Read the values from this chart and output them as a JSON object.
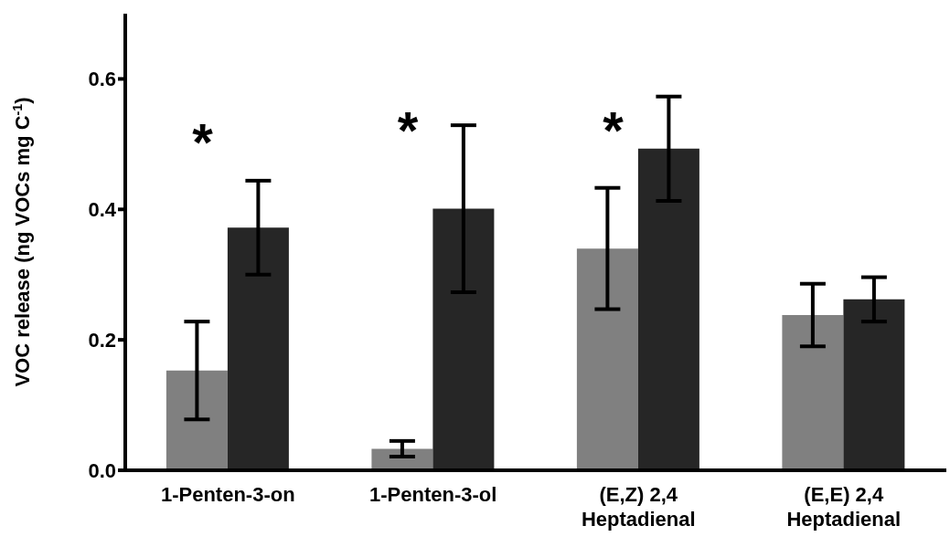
{
  "chart_data": {
    "type": "bar",
    "ylabel": "VOC release (ng VOCs mg C$^{-1}$)",
    "categories": [
      "1-Penten-3-on",
      "1-Penten-3-ol",
      "(E,Z) 2,4 Heptadienal",
      "(E,E) 2,4 Heptadienal"
    ],
    "series": [
      {
        "color": "#808080",
        "values": [
          0.153,
          0.033,
          0.34,
          0.238
        ],
        "errors": [
          0.075,
          0.012,
          0.093,
          0.048
        ]
      },
      {
        "color": "#262626",
        "values": [
          0.372,
          0.401,
          0.493,
          0.262
        ],
        "errors": [
          0.072,
          0.128,
          0.08,
          0.034
        ]
      }
    ],
    "ylim": [
      0,
      0.7
    ],
    "yticks": [
      {
        "value": 0,
        "label": "0.0"
      },
      {
        "value": 0.2,
        "label": "0.2"
      },
      {
        "value": 0.4,
        "label": "0.4"
      },
      {
        "value": 0.6,
        "label": "0.6"
      }
    ],
    "grid": false,
    "legend": false,
    "annotations": [
      "*",
      "*",
      "*"
    ]
  }
}
